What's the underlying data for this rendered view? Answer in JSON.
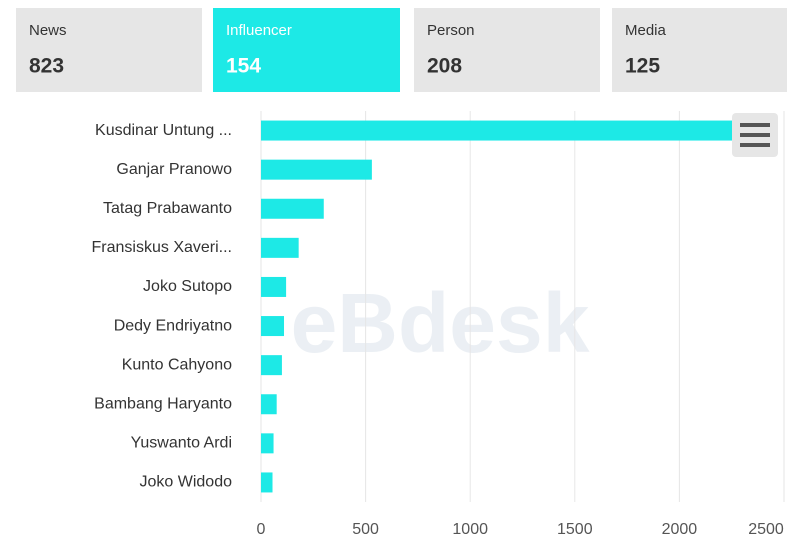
{
  "tabs": [
    {
      "label": "News",
      "count": 823
    },
    {
      "label": "Influencer",
      "count": 154
    },
    {
      "label": "Person",
      "count": 208
    },
    {
      "label": "Media",
      "count": 125
    }
  ],
  "active_tab": 1,
  "watermark": "eBdesk",
  "chart_data": {
    "type": "barh",
    "categories": [
      "Kusdinar Untung ...",
      "Ganjar Pranowo",
      "Tatag Prabawanto",
      "Fransiskus Xaveri...",
      "Joko Sutopo",
      "Dedy Endriyatno",
      "Kunto Cahyono",
      "Bambang Haryanto",
      "Yuswanto Ardi",
      "Joko Widodo"
    ],
    "values": [
      2330,
      530,
      300,
      180,
      120,
      110,
      100,
      75,
      60,
      55
    ],
    "color": "#1de9e6",
    "xlim": [
      0,
      2500
    ],
    "xticks": [
      0,
      500,
      1000,
      1500,
      2000,
      2500
    ],
    "grid": true
  }
}
